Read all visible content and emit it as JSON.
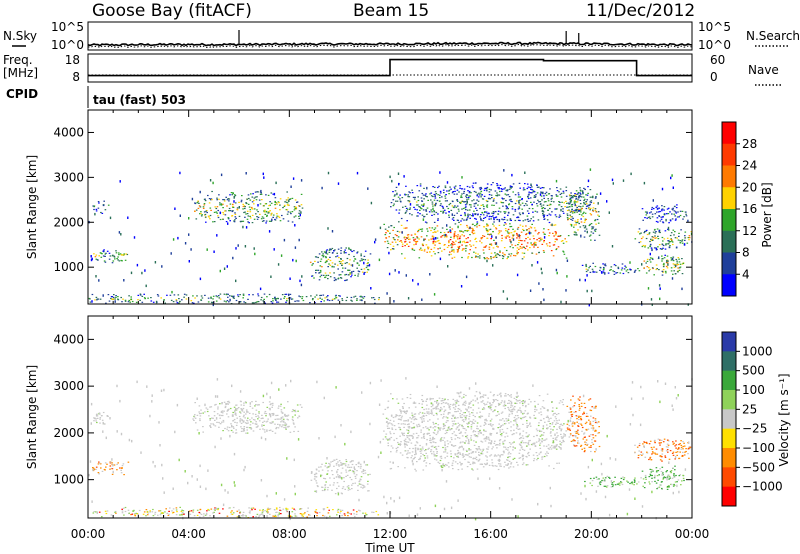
{
  "header": {
    "station": "Goose Bay (fitACF)",
    "beam": "Beam 15",
    "date": "11/Dec/2012"
  },
  "noise_panel": {
    "left_label": "N.Sky",
    "right_label": "N.Search",
    "left_ticks": [
      "10^5",
      "10^0"
    ],
    "right_ticks": [
      "10^5",
      "10^0"
    ]
  },
  "freq_panel": {
    "left_label_1": "Freq.",
    "left_label_2": "[MHz]",
    "right_label": "Nave",
    "left_ticks": [
      "18",
      "8"
    ],
    "right_ticks": [
      "60",
      "0"
    ],
    "cpid_label": "CPID",
    "cpid_value": "tau (fast) 503"
  },
  "colors": {
    "frame": "#000000",
    "scatter_ground": "#a0a0a0"
  },
  "chart_data": [
    {
      "type": "line",
      "title": "N.Sky / N.Search",
      "xlabel": "",
      "ylabel": "N.Sky",
      "x_hours": [
        0,
        3,
        6,
        9,
        12,
        15,
        18,
        21,
        24
      ],
      "noise_level_log10": [
        0.6,
        0.7,
        0.7,
        0.8,
        0.8,
        0.9,
        0.9,
        0.8,
        0.6
      ]
    },
    {
      "type": "line",
      "title": "Freq / Nave",
      "xlabel": "",
      "ylabel": "Freq. [MHz]",
      "freq_mhz": [
        {
          "x": 0.0,
          "y": 10.3
        },
        {
          "x": 12.0,
          "y": 10.3
        },
        {
          "x": 12.0,
          "y": 16.0
        },
        {
          "x": 18.1,
          "y": 16.0
        },
        {
          "x": 18.1,
          "y": 15.6
        },
        {
          "x": 21.8,
          "y": 15.6
        },
        {
          "x": 21.8,
          "y": 10.3
        },
        {
          "x": 24.0,
          "y": 10.3
        }
      ],
      "ylim": [
        8,
        18
      ]
    },
    {
      "type": "heatmap",
      "title": "Power",
      "xlabel": "Time UT",
      "ylabel": "Slant Range [km]",
      "colorbar_label": "Power [dB]",
      "colorbar_ticks": [
        "28",
        "24",
        "20",
        "16",
        "12",
        "8",
        "4"
      ],
      "colorbar_colors": [
        "#ff0000",
        "#ff3a00",
        "#ff7a00",
        "#ffd200",
        "#2fa52a",
        "#2a6f57",
        "#1f3f9a",
        "#0000ff"
      ],
      "x_ticks": [
        "00:00",
        "04:00",
        "08:00",
        "12:00",
        "16:00",
        "20:00",
        "00:00"
      ],
      "y_ticks": [
        "4000",
        "3000",
        "2000",
        "1000"
      ],
      "xlim": [
        0,
        24
      ],
      "ylim": [
        180,
        4500
      ],
      "regions": [
        {
          "t0": 0.0,
          "t1": 11.8,
          "r0": 200,
          "r1": 420,
          "level": 0.4
        },
        {
          "t0": 0.1,
          "t1": 0.8,
          "r0": 2200,
          "r1": 2500,
          "level": 0.3
        },
        {
          "t0": 0.1,
          "t1": 1.6,
          "r0": 1100,
          "r1": 1400,
          "level": 0.45
        },
        {
          "t0": 4.1,
          "t1": 8.5,
          "r0": 2000,
          "r1": 2700,
          "level": 0.5
        },
        {
          "t0": 8.8,
          "t1": 11.2,
          "r0": 700,
          "r1": 1450,
          "level": 0.45
        },
        {
          "t0": 11.7,
          "t1": 12.4,
          "r0": 1400,
          "r1": 2000,
          "level": 0.6
        },
        {
          "t0": 12.4,
          "t1": 19.0,
          "r0": 1200,
          "r1": 2000,
          "level": 0.72
        },
        {
          "t0": 12.0,
          "t1": 20.0,
          "r0": 2000,
          "r1": 2900,
          "level": 0.35
        },
        {
          "t0": 19.0,
          "t1": 20.3,
          "r0": 1600,
          "r1": 2800,
          "level": 0.5
        },
        {
          "t0": 19.6,
          "t1": 22.0,
          "r0": 850,
          "r1": 1100,
          "level": 0.35
        },
        {
          "t0": 21.6,
          "t1": 24.0,
          "r0": 1400,
          "r1": 1900,
          "level": 0.5
        },
        {
          "t0": 22.0,
          "t1": 23.7,
          "r0": 800,
          "r1": 1300,
          "level": 0.55
        },
        {
          "t0": 22.0,
          "t1": 23.8,
          "r0": 2000,
          "r1": 2400,
          "level": 0.3
        }
      ]
    },
    {
      "type": "heatmap",
      "title": "Velocity",
      "xlabel": "Time UT",
      "ylabel": "Slant Range [km]",
      "colorbar_label": "Velocity [m s⁻¹]",
      "colorbar_ticks": [
        "1000",
        "500",
        "100",
        "25",
        "−25",
        "−100",
        "−500",
        "−1000"
      ],
      "colorbar_colors": [
        "#2a3aa8",
        "#2f6f66",
        "#3aa83a",
        "#8fd25a",
        "#c8c8c8",
        "#ffe000",
        "#ff8c00",
        "#ff4a00",
        "#ff0000"
      ],
      "x_ticks": [
        "00:00",
        "04:00",
        "08:00",
        "12:00",
        "16:00",
        "20:00",
        "00:00"
      ],
      "y_ticks": [
        "4000",
        "3000",
        "2000",
        "1000"
      ],
      "xlim": [
        0,
        24
      ],
      "ylim": [
        180,
        4500
      ],
      "regions": [
        {
          "t0": 0.0,
          "t1": 11.8,
          "r0": 200,
          "r1": 420,
          "kind": "mixed"
        },
        {
          "t0": 0.1,
          "t1": 0.8,
          "r0": 2200,
          "r1": 2500,
          "kind": "ground"
        },
        {
          "t0": 0.1,
          "t1": 1.6,
          "r0": 1100,
          "r1": 1400,
          "kind": "orange"
        },
        {
          "t0": 4.1,
          "t1": 8.5,
          "r0": 2000,
          "r1": 2700,
          "kind": "ground"
        },
        {
          "t0": 8.8,
          "t1": 11.2,
          "r0": 700,
          "r1": 1450,
          "kind": "ground"
        },
        {
          "t0": 11.7,
          "t1": 19.0,
          "r0": 1200,
          "r1": 2900,
          "kind": "ground"
        },
        {
          "t0": 19.0,
          "t1": 20.3,
          "r0": 1600,
          "r1": 2800,
          "kind": "orange"
        },
        {
          "t0": 19.6,
          "t1": 22.0,
          "r0": 850,
          "r1": 1100,
          "kind": "green"
        },
        {
          "t0": 21.6,
          "t1": 24.0,
          "r0": 1400,
          "r1": 1900,
          "kind": "orange"
        },
        {
          "t0": 22.0,
          "t1": 23.7,
          "r0": 800,
          "r1": 1300,
          "kind": "green"
        }
      ]
    }
  ]
}
